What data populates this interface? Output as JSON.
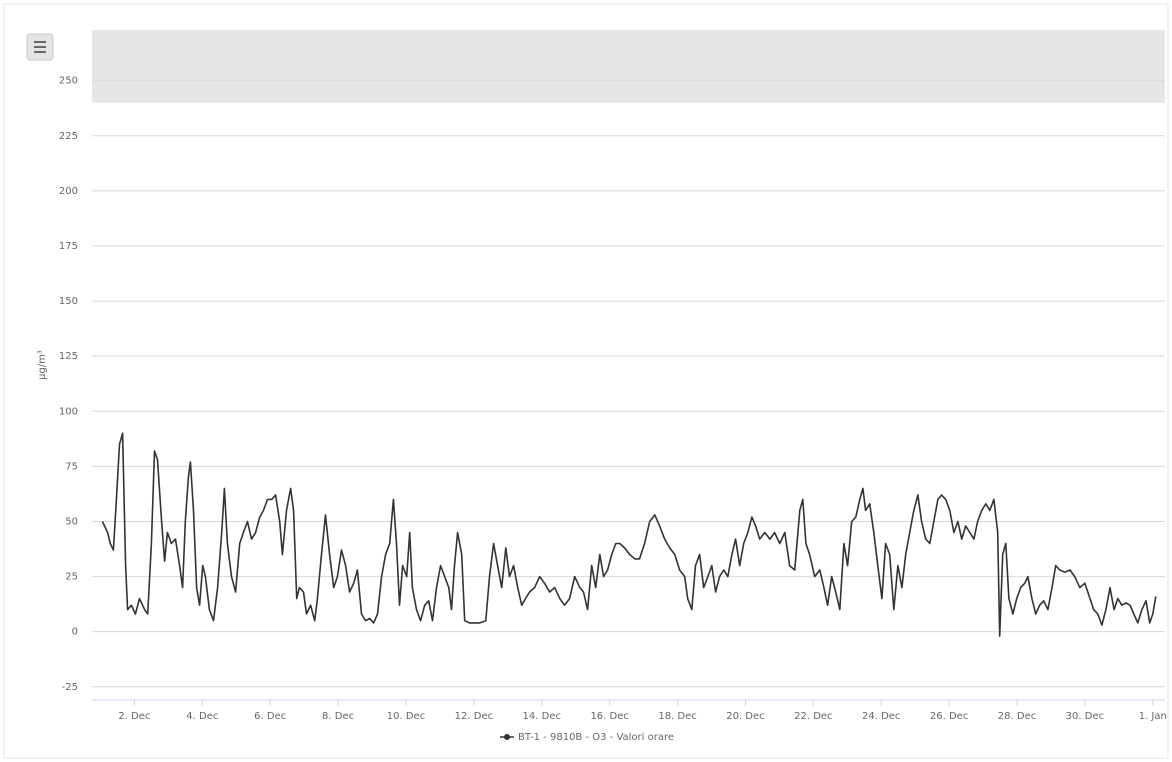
{
  "chart_data": {
    "type": "line",
    "y_axis_label": "µg/m³",
    "xlim": [
      0.75,
      32.36
    ],
    "ylim": [
      -31,
      273
    ],
    "xticks": [
      {
        "value": 2,
        "label": "2. Dec"
      },
      {
        "value": 4,
        "label": "4. Dec"
      },
      {
        "value": 6,
        "label": "6. Dec"
      },
      {
        "value": 8,
        "label": "8. Dec"
      },
      {
        "value": 10,
        "label": "10. Dec"
      },
      {
        "value": 12,
        "label": "12. Dec"
      },
      {
        "value": 14,
        "label": "14. Dec"
      },
      {
        "value": 16,
        "label": "16. Dec"
      },
      {
        "value": 18,
        "label": "18. Dec"
      },
      {
        "value": 20,
        "label": "20. Dec"
      },
      {
        "value": 22,
        "label": "22. Dec"
      },
      {
        "value": 24,
        "label": "24. Dec"
      },
      {
        "value": 26,
        "label": "26. Dec"
      },
      {
        "value": 28,
        "label": "28. Dec"
      },
      {
        "value": 30,
        "label": "30. Dec"
      },
      {
        "value": 32,
        "label": "1. Jan"
      }
    ],
    "yticks": [
      -25,
      0,
      25,
      50,
      75,
      100,
      125,
      150,
      175,
      200,
      225,
      250
    ],
    "grid": true,
    "plot_band": {
      "from": 240,
      "to": 273,
      "color": "#e6e6e6"
    },
    "legend": "bottom",
    "x": [
      1.06,
      1.21,
      1.29,
      1.38,
      1.47,
      1.56,
      1.65,
      1.74,
      1.8,
      1.91,
      2.03,
      2.15,
      2.3,
      2.39,
      2.5,
      2.59,
      2.68,
      2.8,
      2.89,
      2.97,
      3.09,
      3.21,
      3.33,
      3.42,
      3.5,
      3.59,
      3.65,
      3.74,
      3.83,
      3.92,
      4.01,
      4.09,
      4.21,
      4.33,
      4.45,
      4.57,
      4.65,
      4.74,
      4.86,
      4.98,
      5.1,
      5.21,
      5.33,
      5.45,
      5.57,
      5.69,
      5.8,
      5.92,
      6.04,
      6.16,
      6.28,
      6.36,
      6.48,
      6.6,
      6.69,
      6.78,
      6.86,
      6.98,
      7.07,
      7.19,
      7.31,
      7.39,
      7.51,
      7.63,
      7.75,
      7.87,
      7.98,
      8.1,
      8.22,
      8.34,
      8.46,
      8.57,
      8.69,
      8.81,
      8.93,
      9.05,
      9.16,
      9.28,
      9.4,
      9.52,
      9.63,
      9.72,
      9.81,
      9.9,
      10.02,
      10.11,
      10.19,
      10.31,
      10.43,
      10.55,
      10.67,
      10.78,
      10.9,
      11.02,
      11.14,
      11.26,
      11.34,
      11.43,
      11.52,
      11.64,
      11.73,
      11.87,
      12.02,
      12.17,
      12.35,
      12.46,
      12.58,
      12.7,
      12.82,
      12.94,
      13.05,
      13.17,
      13.29,
      13.41,
      13.52,
      13.64,
      13.79,
      13.94,
      14.08,
      14.23,
      14.38,
      14.53,
      14.67,
      14.82,
      14.97,
      15.12,
      15.23,
      15.35,
      15.47,
      15.59,
      15.71,
      15.82,
      15.94,
      16.06,
      16.18,
      16.3,
      16.44,
      16.59,
      16.74,
      16.88,
      17.03,
      17.18,
      17.33,
      17.47,
      17.62,
      17.77,
      17.92,
      18.06,
      18.21,
      18.3,
      18.42,
      18.53,
      18.65,
      18.77,
      18.89,
      19.01,
      19.12,
      19.24,
      19.36,
      19.48,
      19.6,
      19.71,
      19.83,
      19.95,
      20.07,
      20.19,
      20.3,
      20.42,
      20.57,
      20.72,
      20.86,
      21.01,
      21.16,
      21.3,
      21.45,
      21.6,
      21.69,
      21.78,
      21.89,
      22.04,
      22.19,
      22.31,
      22.42,
      22.54,
      22.66,
      22.78,
      22.9,
      23.01,
      23.13,
      23.25,
      23.37,
      23.46,
      23.54,
      23.66,
      23.78,
      23.9,
      24.02,
      24.13,
      24.25,
      24.37,
      24.49,
      24.61,
      24.72,
      24.84,
      24.96,
      25.08,
      25.19,
      25.31,
      25.43,
      25.55,
      25.67,
      25.78,
      25.9,
      26.02,
      26.14,
      26.26,
      26.37,
      26.49,
      26.61,
      26.73,
      26.84,
      26.96,
      27.08,
      27.2,
      27.32,
      27.43,
      27.49,
      27.58,
      27.67,
      27.76,
      27.88,
      27.99,
      28.11,
      28.23,
      28.32,
      28.44,
      28.55,
      28.67,
      28.79,
      28.91,
      29.03,
      29.14,
      29.26,
      29.41,
      29.56,
      29.7,
      29.85,
      30.0,
      30.15,
      30.26,
      30.38,
      30.5,
      30.62,
      30.74,
      30.86,
      30.97,
      31.09,
      31.21,
      31.33,
      31.44,
      31.56,
      31.68,
      31.8,
      31.91,
      32.0,
      32.09
    ],
    "series": [
      {
        "name": "BT-1 - 9810B - O3 - Valori orare",
        "color": "#333333",
        "values": [
          50,
          45,
          40,
          37,
          60,
          85,
          90,
          30,
          10,
          12,
          8,
          15,
          10,
          8,
          40,
          82,
          78,
          50,
          32,
          45,
          40,
          42,
          30,
          20,
          50,
          70,
          77,
          55,
          20,
          12,
          30,
          25,
          10,
          5,
          20,
          45,
          65,
          40,
          25,
          18,
          40,
          45,
          50,
          42,
          45,
          52,
          55,
          60,
          60,
          62,
          50,
          35,
          55,
          65,
          55,
          15,
          20,
          18,
          8,
          12,
          5,
          15,
          35,
          53,
          35,
          20,
          25,
          37,
          30,
          18,
          22,
          28,
          8,
          5,
          6,
          4,
          8,
          25,
          35,
          40,
          60,
          40,
          12,
          30,
          25,
          45,
          20,
          10,
          5,
          12,
          14,
          5,
          20,
          30,
          25,
          20,
          10,
          30,
          45,
          35,
          5,
          4,
          4,
          4,
          5,
          25,
          40,
          30,
          20,
          38,
          25,
          30,
          20,
          12,
          15,
          18,
          20,
          25,
          22,
          18,
          20,
          15,
          12,
          15,
          25,
          20,
          18,
          10,
          30,
          20,
          35,
          25,
          28,
          35,
          40,
          40,
          38,
          35,
          33,
          33,
          40,
          50,
          53,
          48,
          42,
          38,
          35,
          28,
          25,
          15,
          10,
          30,
          35,
          20,
          25,
          30,
          18,
          25,
          28,
          25,
          35,
          42,
          30,
          40,
          45,
          52,
          48,
          42,
          45,
          42,
          45,
          40,
          45,
          30,
          28,
          55,
          60,
          40,
          35,
          25,
          28,
          20,
          12,
          25,
          18,
          10,
          40,
          30,
          50,
          52,
          60,
          65,
          55,
          58,
          45,
          30,
          15,
          40,
          35,
          10,
          30,
          20,
          35,
          45,
          55,
          62,
          50,
          42,
          40,
          50,
          60,
          62,
          60,
          55,
          45,
          50,
          42,
          48,
          45,
          42,
          50,
          55,
          58,
          55,
          60,
          45,
          -2,
          35,
          40,
          15,
          8,
          15,
          20,
          22,
          25,
          15,
          8,
          12,
          14,
          10,
          20,
          30,
          28,
          27,
          28,
          25,
          20,
          22,
          15,
          10,
          8,
          3,
          10,
          20,
          10,
          15,
          12,
          13,
          12,
          8,
          4,
          10,
          14,
          4,
          8,
          16
        ]
      }
    ]
  }
}
